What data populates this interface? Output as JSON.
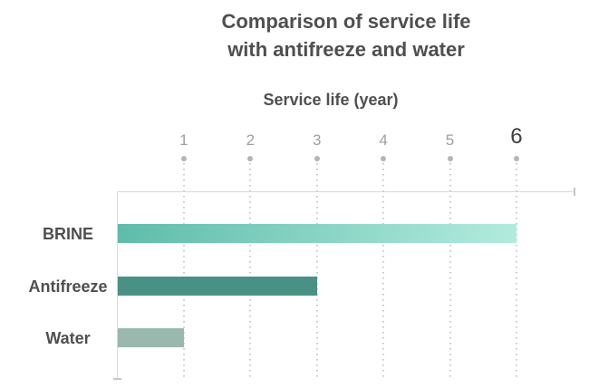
{
  "title": {
    "line1": "Comparison of service life",
    "line2": "with antifreeze and water"
  },
  "x_axis": {
    "label": "Service life (year)",
    "ticks": [
      1,
      2,
      3,
      4,
      5,
      6
    ],
    "emphasized_tick": 6
  },
  "chart_data": {
    "type": "bar",
    "orientation": "horizontal",
    "title": "Comparison of service life with antifreeze and water",
    "xlabel": "Service life (year)",
    "categories": [
      "BRINE",
      "Antifreeze",
      "Water"
    ],
    "values": [
      6,
      3,
      1
    ],
    "xlim": [
      0,
      6
    ],
    "grid": "vertical-dotted",
    "legend": "none",
    "bar_colors": [
      {
        "type": "gradient",
        "from": "#5fbcaa",
        "to": "#b2ebde"
      },
      {
        "type": "solid",
        "color": "#4a9185"
      },
      {
        "type": "solid",
        "color": "#9ab8ae"
      }
    ]
  },
  "colors": {
    "title_text": "#4f4f4f",
    "tick_text": "#9e9e9e",
    "emphasized_tick_text": "#3f3f3f",
    "axis_line": "#d8d8d8",
    "grid_dot": "#c9c9c9",
    "marker_dot": "#b5b5b5",
    "background": "#ffffff"
  }
}
